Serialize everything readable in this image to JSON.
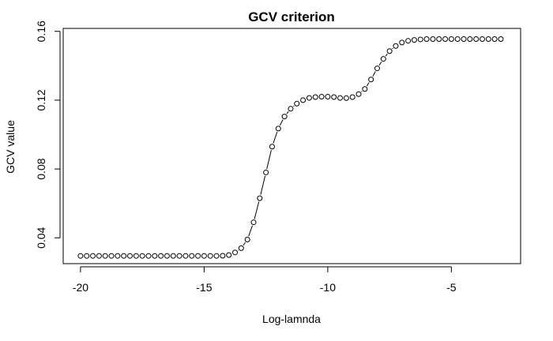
{
  "chart_data": {
    "type": "scatter",
    "title": "GCV criterion",
    "xlabel": "Log-lamnda",
    "ylabel": "GCV value",
    "xlim": [
      -20.7,
      -2.2
    ],
    "ylim": [
      0.025,
      0.1617
    ],
    "xticks": [
      -20,
      -15,
      -10,
      -5
    ],
    "xtick_labels": [
      "-20",
      "-15",
      "-10",
      "-5"
    ],
    "yticks": [
      0.04,
      0.08,
      0.12,
      0.16
    ],
    "ytick_labels": [
      "0.04",
      "0.08",
      "0.12",
      "0.16"
    ],
    "grid": false,
    "marker": "open-circle",
    "connected_with_dashes": true,
    "x": [
      -20,
      -19.75,
      -19.5,
      -19.25,
      -19,
      -18.75,
      -18.5,
      -18.25,
      -18,
      -17.75,
      -17.5,
      -17.25,
      -17,
      -16.75,
      -16.5,
      -16.25,
      -16,
      -15.75,
      -15.5,
      -15.25,
      -15,
      -14.75,
      -14.5,
      -14.25,
      -14,
      -13.75,
      -13.5,
      -13.25,
      -13,
      -12.75,
      -12.5,
      -12.25,
      -12,
      -11.75,
      -11.5,
      -11.25,
      -11,
      -10.75,
      -10.5,
      -10.25,
      -10,
      -9.75,
      -9.5,
      -9.25,
      -9,
      -8.75,
      -8.5,
      -8.25,
      -8,
      -7.75,
      -7.5,
      -7.25,
      -7,
      -6.75,
      -6.5,
      -6.25,
      -6,
      -5.75,
      -5.5,
      -5.25,
      -5,
      -4.75,
      -4.5,
      -4.25,
      -4,
      -3.75,
      -3.5,
      -3.25,
      -3
    ],
    "y": [
      0.0295,
      0.0295,
      0.0295,
      0.0295,
      0.0295,
      0.0295,
      0.0295,
      0.0295,
      0.0295,
      0.0295,
      0.0295,
      0.0295,
      0.0295,
      0.0295,
      0.0295,
      0.0295,
      0.0295,
      0.0295,
      0.0295,
      0.0295,
      0.0295,
      0.0295,
      0.0295,
      0.0296,
      0.03,
      0.0315,
      0.034,
      0.039,
      0.049,
      0.063,
      0.078,
      0.093,
      0.1035,
      0.1105,
      0.115,
      0.118,
      0.12,
      0.1213,
      0.1218,
      0.122,
      0.122,
      0.1218,
      0.1213,
      0.1212,
      0.1218,
      0.1235,
      0.1265,
      0.132,
      0.1385,
      0.144,
      0.1485,
      0.1515,
      0.1535,
      0.1545,
      0.155,
      0.1553,
      0.1555,
      0.1555,
      0.1555,
      0.1555,
      0.1555,
      0.1555,
      0.1555,
      0.1555,
      0.1555,
      0.1555,
      0.1555,
      0.1555,
      0.1555
    ]
  }
}
